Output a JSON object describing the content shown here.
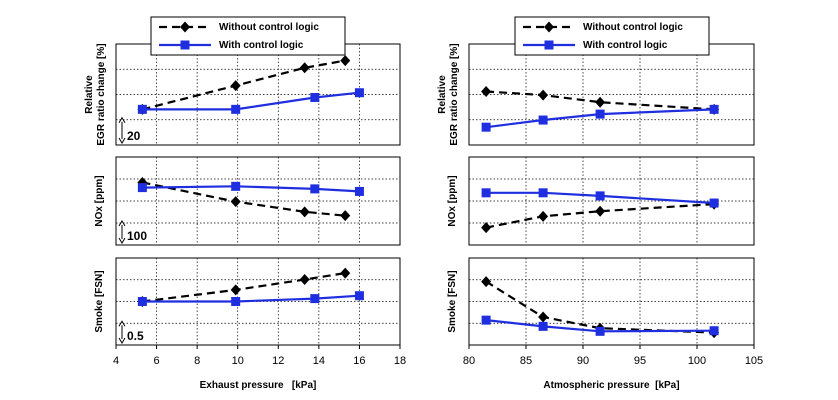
{
  "colors": {
    "with": "#1f2fe0",
    "without": "#000000",
    "grid": "#000000"
  },
  "legend": {
    "without_label": "Without control logic",
    "with_label": "With control logic"
  },
  "chart_data": [
    {
      "type": "line",
      "panel": "left",
      "xlabel": "Exhaust pressure   [kPa]",
      "xlim": [
        4,
        18
      ],
      "xticks": [
        4,
        6,
        8,
        10,
        12,
        14,
        16,
        18
      ],
      "subplots": [
        {
          "ylabel_lines": [
            "Relative",
            "EGR ratio change  [%]"
          ],
          "scale_label": "20",
          "series": [
            {
              "name": "Without control logic",
              "x": [
                5.3,
                9.9,
                13.3,
                15.3
              ],
              "y": [
                0,
                20,
                35,
                41
              ]
            },
            {
              "name": "With control logic",
              "x": [
                5.3,
                9.9,
                13.8,
                16.0
              ],
              "y": [
                0,
                0,
                10,
                14
              ]
            }
          ],
          "ylim": [
            -30,
            55
          ]
        },
        {
          "ylabel_lines": [
            "NOx  [ppm]"
          ],
          "scale_label": "100",
          "series": [
            {
              "name": "Without control logic",
              "x": [
                5.3,
                9.9,
                13.3,
                15.3
              ],
              "y": [
                20,
                -55,
                -95,
                -110
              ]
            },
            {
              "name": "With control logic",
              "x": [
                5.3,
                9.9,
                13.8,
                16.0
              ],
              "y": [
                0,
                5,
                -5,
                -15
              ]
            }
          ],
          "ylim": [
            -225,
            120
          ]
        },
        {
          "ylabel_lines": [
            "Smoke  [FSN]"
          ],
          "scale_label": "0.5",
          "series": [
            {
              "name": "Without control logic",
              "x": [
                5.3,
                9.9,
                13.3,
                15.3
              ],
              "y": [
                0,
                0.2,
                0.38,
                0.49
              ]
            },
            {
              "name": "With control logic",
              "x": [
                5.3,
                9.9,
                13.8,
                16.0
              ],
              "y": [
                0,
                0,
                0.05,
                0.1
              ]
            }
          ],
          "ylim": [
            -0.75,
            0.75
          ]
        }
      ],
      "legend_position": "top"
    },
    {
      "type": "line",
      "panel": "right",
      "xlabel": "Atmospheric pressure  [kPa]",
      "xlim": [
        80,
        105
      ],
      "xticks": [
        80,
        85,
        90,
        95,
        100,
        105
      ],
      "subplots": [
        {
          "ylabel_lines": [
            "Relative",
            "EGR ratio change  [%]"
          ],
          "series": [
            {
              "name": "Without control logic",
              "x": [
                81.5,
                86.5,
                91.5,
                101.5
              ],
              "y": [
                15,
                12,
                6,
                0
              ]
            },
            {
              "name": "With control logic",
              "x": [
                81.5,
                86.5,
                91.5,
                101.5
              ],
              "y": [
                -15,
                -9,
                -4,
                0
              ]
            }
          ],
          "ylim": [
            -30,
            55
          ]
        },
        {
          "ylabel_lines": [
            "NOx  [ppm]"
          ],
          "series": [
            {
              "name": "Without control logic",
              "x": [
                81.5,
                86.5,
                91.5,
                101.5
              ],
              "y": [
                -215,
                -160,
                -135,
                -100
              ]
            },
            {
              "name": "With control logic",
              "x": [
                81.5,
                86.5,
                91.5,
                101.5
              ],
              "y": [
                -45,
                -45,
                -60,
                -95
              ]
            }
          ],
          "ylim": [
            -300,
            130
          ]
        },
        {
          "ylabel_lines": [
            "Smoke  [FSN]"
          ],
          "series": [
            {
              "name": "Without control logic",
              "x": [
                81.5,
                86.5,
                91.5,
                101.5
              ],
              "y": [
                0.47,
                -0.1,
                -0.28,
                -0.35
              ]
            },
            {
              "name": "With control logic",
              "x": [
                81.5,
                86.5,
                91.5,
                101.5
              ],
              "y": [
                -0.15,
                -0.25,
                -0.33,
                -0.32
              ]
            }
          ],
          "ylim": [
            -0.55,
            0.85
          ]
        }
      ],
      "legend_position": "top"
    }
  ]
}
